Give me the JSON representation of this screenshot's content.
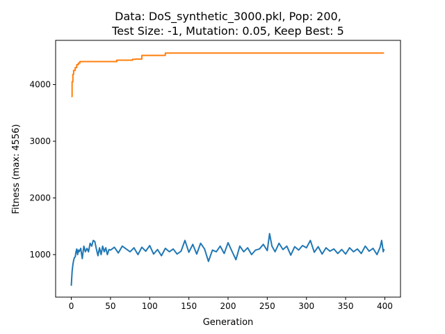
{
  "chart_data": {
    "type": "line",
    "title_lines": [
      "Data: DoS_synthetic_3000.pkl, Pop: 200,",
      "Test Size: -1, Mutation: 0.05, Keep Best: 5"
    ],
    "xlabel": "Generation",
    "ylabel": "Fitness (max: 4556)",
    "xlim": [
      -20,
      420
    ],
    "ylim": [
      250,
      4780
    ],
    "xticks": [
      0,
      50,
      100,
      150,
      200,
      250,
      300,
      350,
      400
    ],
    "yticks": [
      1000,
      2000,
      3000,
      4000
    ],
    "grid": false,
    "legend": "none",
    "series": [
      {
        "color": "#ff7f0e",
        "x": [
          0,
          1,
          1,
          2,
          2,
          3,
          3,
          5,
          5,
          7,
          7,
          9,
          9,
          11,
          11,
          30,
          58,
          58,
          78,
          78,
          82,
          82,
          90,
          90,
          120,
          120,
          399
        ],
        "values": [
          3790,
          3790,
          4050,
          4050,
          4180,
          4180,
          4250,
          4250,
          4300,
          4300,
          4350,
          4350,
          4380,
          4380,
          4405,
          4405,
          4405,
          4430,
          4430,
          4445,
          4445,
          4450,
          4450,
          4515,
          4515,
          4556,
          4556
        ]
      },
      {
        "color": "#1f77b4",
        "x": [
          0,
          1,
          2,
          3,
          4,
          5,
          6,
          7,
          8,
          9,
          10,
          12,
          14,
          16,
          18,
          20,
          22,
          24,
          26,
          28,
          30,
          32,
          34,
          36,
          38,
          40,
          42,
          44,
          46,
          48,
          50,
          55,
          60,
          65,
          70,
          75,
          80,
          85,
          90,
          95,
          100,
          105,
          110,
          115,
          120,
          125,
          130,
          135,
          140,
          145,
          150,
          155,
          160,
          165,
          170,
          175,
          180,
          185,
          190,
          195,
          200,
          205,
          210,
          215,
          220,
          225,
          230,
          235,
          240,
          245,
          250,
          253,
          256,
          260,
          265,
          270,
          275,
          280,
          285,
          290,
          295,
          300,
          305,
          310,
          315,
          320,
          325,
          330,
          335,
          340,
          345,
          350,
          355,
          360,
          365,
          370,
          375,
          380,
          385,
          390,
          394,
          396,
          398,
          399
        ],
        "values": [
          450,
          700,
          820,
          900,
          950,
          960,
          1050,
          1100,
          1000,
          1080,
          1050,
          1110,
          930,
          1150,
          1050,
          1110,
          1050,
          1200,
          1150,
          1250,
          1230,
          1100,
          980,
          1120,
          1000,
          1150,
          1050,
          1120,
          1000,
          1090,
          1080,
          1130,
          1030,
          1150,
          1100,
          1050,
          1120,
          1000,
          1130,
          1060,
          1160,
          1010,
          1090,
          980,
          1110,
          1050,
          1100,
          1010,
          1060,
          1250,
          1040,
          1180,
          1010,
          1200,
          1100,
          880,
          1080,
          1050,
          1150,
          1020,
          1210,
          1060,
          910,
          1150,
          1050,
          1120,
          1000,
          1080,
          1100,
          1180,
          1070,
          1370,
          1150,
          1050,
          1200,
          1090,
          1150,
          990,
          1140,
          1080,
          1160,
          1120,
          1250,
          1040,
          1140,
          1010,
          1120,
          1060,
          1100,
          1020,
          1090,
          1010,
          1120,
          1050,
          1100,
          1020,
          1150,
          1060,
          1110,
          1000,
          1130,
          1250,
          1050,
          1100
        ]
      }
    ]
  }
}
